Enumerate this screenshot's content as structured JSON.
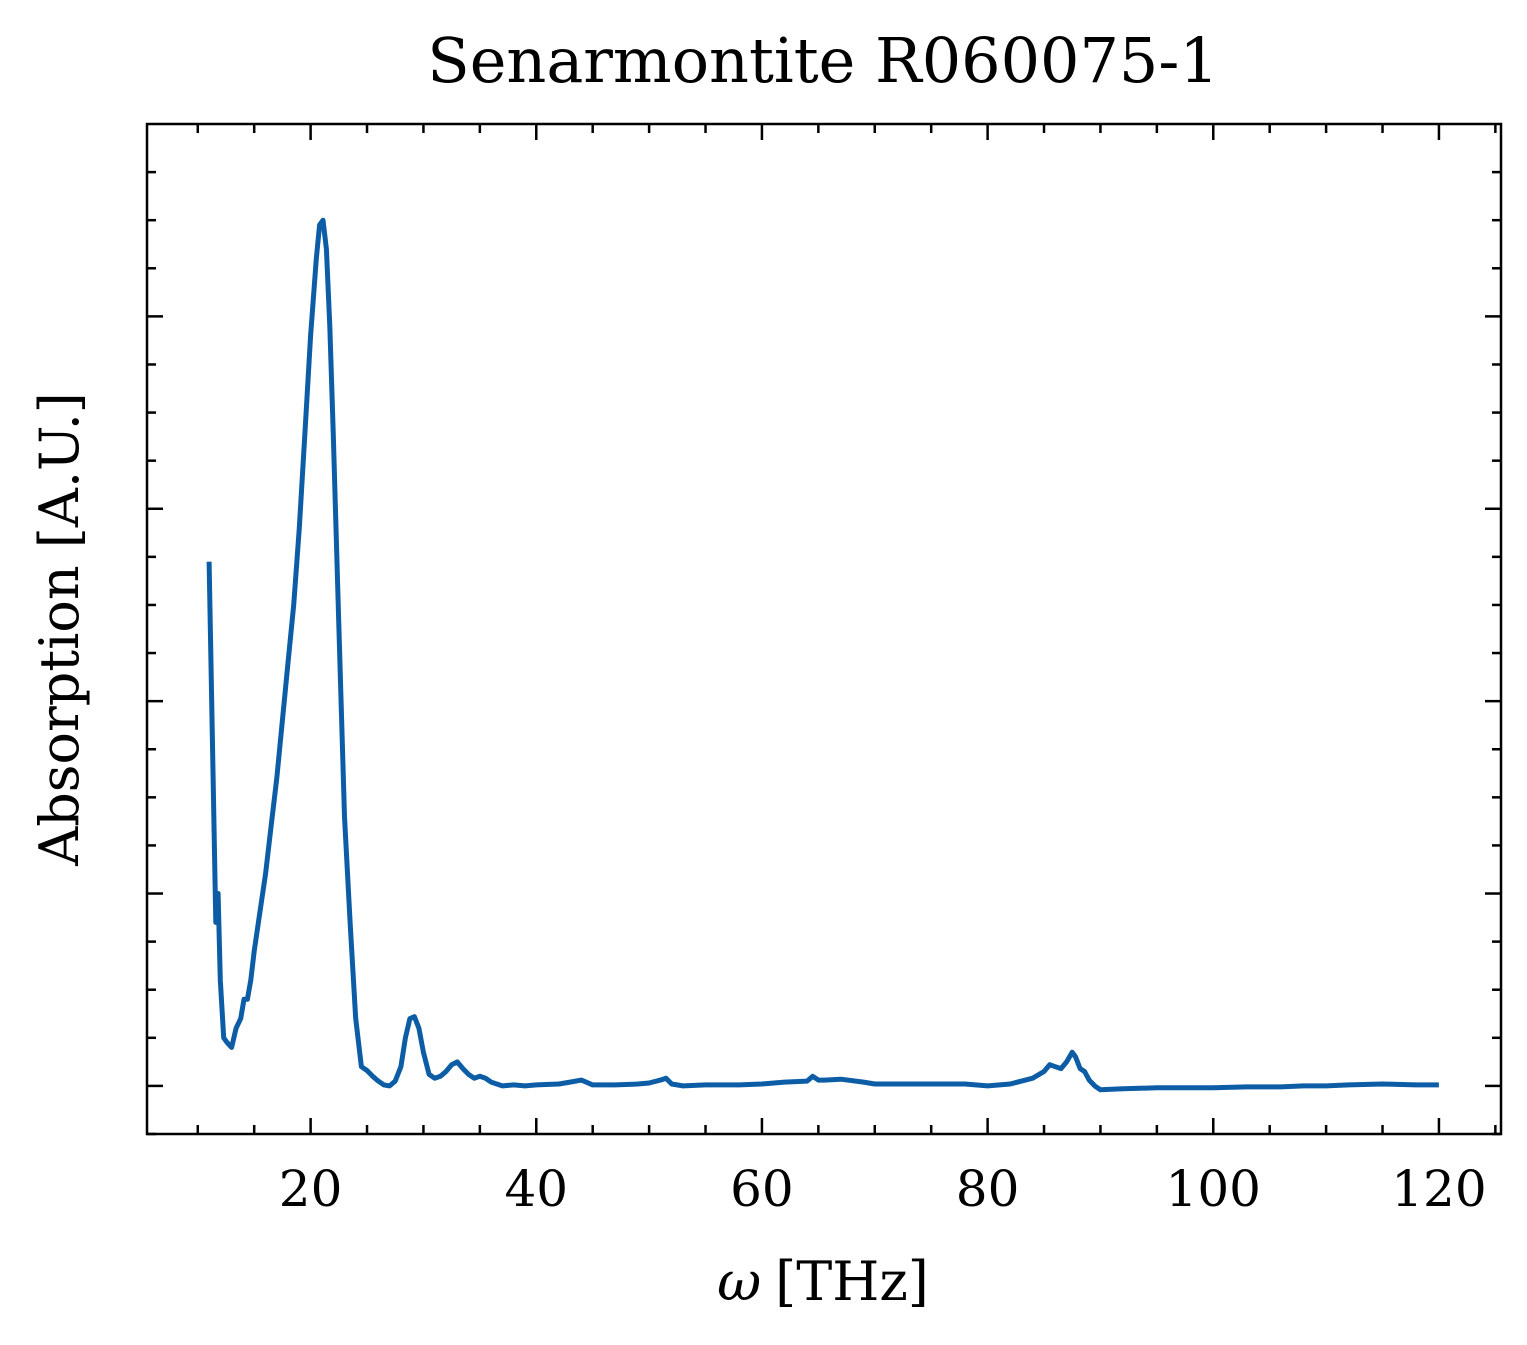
{
  "chart_data": {
    "type": "line",
    "title": "Senarmontite R060075-1",
    "xlabel_symbol": "ω",
    "xlabel_unit": "[THz]",
    "ylabel": "Absorption [A.U.]",
    "xlim": [
      5.5,
      125.5
    ],
    "ylim": [
      -0.05,
      1.0
    ],
    "xticks": [
      20,
      40,
      60,
      80,
      100,
      120
    ],
    "xtick_labels": [
      "20",
      "40",
      "60",
      "80",
      "100",
      "120"
    ],
    "yticks": [
      0.0,
      0.2,
      0.4,
      0.6,
      0.8
    ],
    "ytick_labels_shown": false,
    "grid": false,
    "line_color": "#0C5DA5",
    "series": [
      {
        "x": [
          11.0,
          11.3,
          11.6,
          11.8,
          12.0,
          12.3,
          12.6,
          13.0,
          13.4,
          13.8,
          14.1,
          14.4,
          14.7,
          15.0,
          15.5,
          16.0,
          16.5,
          17.0,
          17.5,
          18.0,
          18.5,
          19.0,
          19.5,
          20.0,
          20.5,
          20.8,
          21.1,
          21.4,
          21.7,
          22.0,
          22.5,
          23.0,
          23.5,
          24.0,
          24.5,
          25.0,
          25.5,
          26.0,
          26.5,
          27.0,
          27.5,
          28.0,
          28.4,
          28.8,
          29.2,
          29.6,
          30.0,
          30.5,
          31.0,
          31.5,
          32.0,
          32.5,
          33.0,
          33.5,
          34.0,
          34.5,
          35.0,
          35.5,
          36.0,
          37.0,
          38.0,
          39.0,
          40.0,
          42.0,
          43.0,
          44.0,
          45.0,
          47.0,
          49.0,
          50.0,
          51.0,
          51.5,
          52.0,
          53.0,
          55.0,
          58.0,
          60.0,
          62.0,
          64.0,
          64.5,
          65.0,
          65.5,
          67.0,
          69.0,
          70.0,
          72.0,
          75.0,
          78.0,
          80.0,
          82.0,
          84.0,
          85.0,
          85.5,
          86.0,
          86.5,
          87.0,
          87.5,
          87.8,
          88.2,
          88.6,
          89.0,
          89.5,
          90.0,
          92.0,
          95.0,
          98.0,
          100.0,
          103.0,
          106.0,
          108.0,
          110.0,
          112.0,
          115.0,
          118.0,
          120.0
        ],
        "y": [
          0.545,
          0.36,
          0.17,
          0.2,
          0.11,
          0.05,
          0.045,
          0.04,
          0.06,
          0.07,
          0.09,
          0.09,
          0.11,
          0.14,
          0.18,
          0.22,
          0.27,
          0.32,
          0.38,
          0.44,
          0.5,
          0.58,
          0.68,
          0.78,
          0.86,
          0.895,
          0.9,
          0.87,
          0.79,
          0.68,
          0.48,
          0.28,
          0.17,
          0.07,
          0.02,
          0.016,
          0.01,
          0.005,
          0.001,
          0.0,
          0.005,
          0.02,
          0.05,
          0.07,
          0.072,
          0.06,
          0.035,
          0.012,
          0.008,
          0.01,
          0.015,
          0.022,
          0.025,
          0.018,
          0.012,
          0.008,
          0.01,
          0.008,
          0.004,
          0.0,
          0.001,
          0.0,
          0.001,
          0.002,
          0.004,
          0.006,
          0.001,
          0.001,
          0.002,
          0.003,
          0.006,
          0.008,
          0.002,
          0.0,
          0.001,
          0.001,
          0.002,
          0.004,
          0.005,
          0.01,
          0.006,
          0.006,
          0.007,
          0.004,
          0.002,
          0.002,
          0.002,
          0.002,
          0.0,
          0.002,
          0.008,
          0.015,
          0.022,
          0.02,
          0.018,
          0.025,
          0.035,
          0.03,
          0.018,
          0.015,
          0.006,
          0.0,
          -0.004,
          -0.003,
          -0.002,
          -0.002,
          -0.002,
          -0.001,
          -0.001,
          0.0,
          0.0,
          0.001,
          0.002,
          0.001,
          0.001
        ]
      }
    ]
  }
}
